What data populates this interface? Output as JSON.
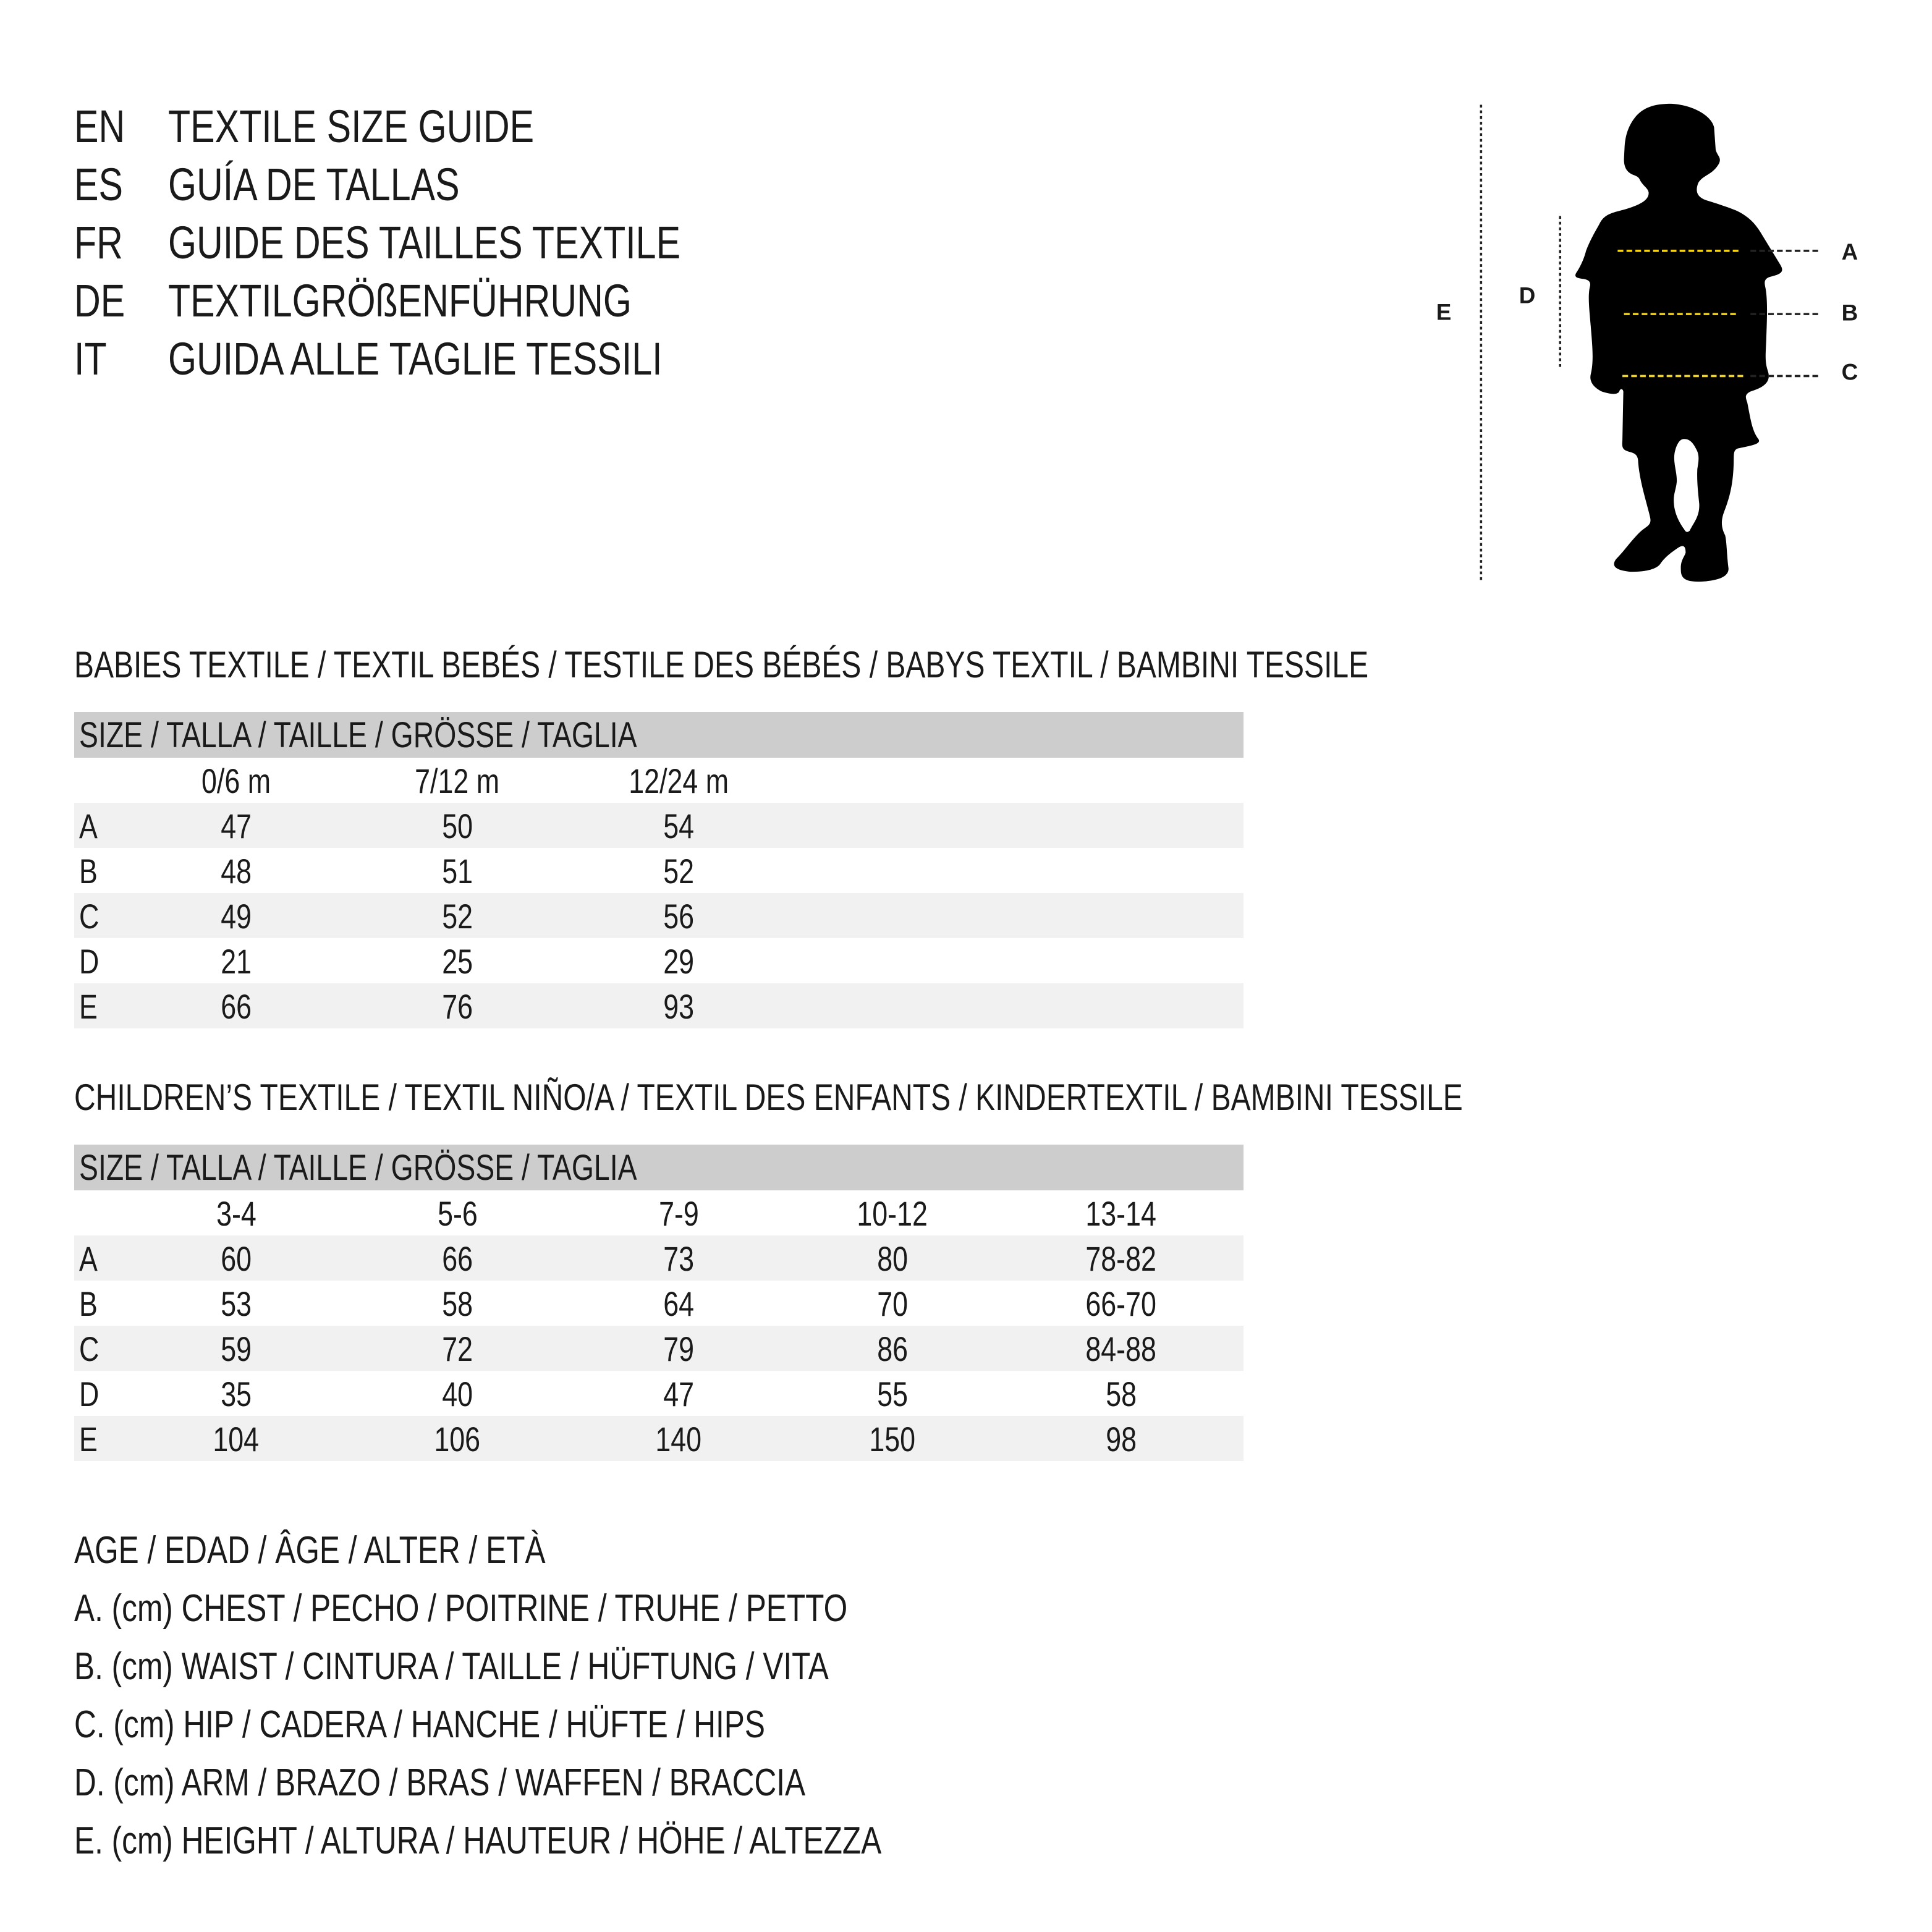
{
  "header": [
    {
      "code": "EN",
      "text": "TEXTILE SIZE GUIDE"
    },
    {
      "code": "ES",
      "text": "GUÍA DE TALLAS"
    },
    {
      "code": "FR",
      "text": "GUIDE DES TAILLES TEXTILE"
    },
    {
      "code": "DE",
      "text": "TEXTILGRÖßENFÜHRUNG"
    },
    {
      "code": "IT",
      "text": "GUIDA ALLE TAGLIE TESSILI"
    }
  ],
  "figure": {
    "labels": {
      "A": "A",
      "B": "B",
      "C": "C",
      "D": "D",
      "E": "E"
    },
    "colors": {
      "silhouette": "#000000",
      "measure_line": "#f2d21b",
      "guide_line": "#222222"
    }
  },
  "babies": {
    "title": "BABIES TEXTILE / TEXTIL BEBÉS / TESTILE DES BÉBÉS / BABYS TEXTIL / BAMBINI TESSILE",
    "size_header": "SIZE / TALLA / TAILLE / GRÖSSE / TAGLIA",
    "columns": [
      "0/6 m",
      "7/12 m",
      "12/24 m"
    ],
    "rows": [
      {
        "label": "A",
        "values": [
          "47",
          "50",
          "54"
        ]
      },
      {
        "label": "B",
        "values": [
          "48",
          "51",
          "52"
        ]
      },
      {
        "label": "C",
        "values": [
          "49",
          "52",
          "56"
        ]
      },
      {
        "label": "D",
        "values": [
          "21",
          "25",
          "29"
        ]
      },
      {
        "label": "E",
        "values": [
          "66",
          "76",
          "93"
        ]
      }
    ]
  },
  "children": {
    "title": "CHILDREN’S TEXTILE / TEXTIL NIÑO/A / TEXTIL DES ENFANTS / KINDERTEXTIL / BAMBINI TESSILE",
    "size_header": "SIZE / TALLA / TAILLE / GRÖSSE / TAGLIA",
    "columns": [
      "3-4",
      "5-6",
      "7-9",
      "10-12",
      "13-14"
    ],
    "rows": [
      {
        "label": "A",
        "values": [
          "60",
          "66",
          "73",
          "80",
          "78-82"
        ]
      },
      {
        "label": "B",
        "values": [
          "53",
          "58",
          "64",
          "70",
          "66-70"
        ]
      },
      {
        "label": "C",
        "values": [
          "59",
          "72",
          "79",
          "86",
          "84-88"
        ]
      },
      {
        "label": "D",
        "values": [
          "35",
          "40",
          "47",
          "55",
          "58"
        ]
      },
      {
        "label": "E",
        "values": [
          "104",
          "106",
          "140",
          "150",
          "98"
        ]
      }
    ]
  },
  "legend": [
    "AGE / EDAD / ÂGE / ALTER / ETÀ",
    "A. (cm) CHEST / PECHO / POITRINE / TRUHE / PETTO",
    "B. (cm) WAIST / CINTURA / TAILLE / HÜFTUNG / VITA",
    "C. (cm) HIP / CADERA / HANCHE / HÜFTE / HIPS",
    "D. (cm) ARM / BRAZO / BRAS / WAFFEN / BRACCIA",
    "E. (cm) HEIGHT / ALTURA / HAUTEUR / HÖHE / ALTEZZA"
  ]
}
